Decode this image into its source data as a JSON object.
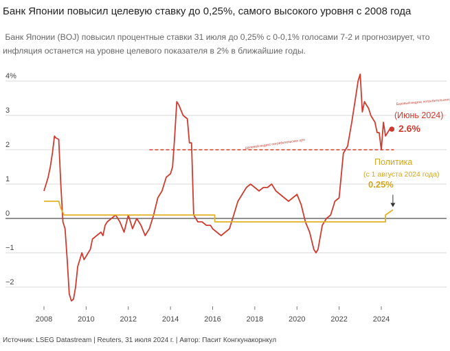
{
  "chart_data": {
    "type": "line",
    "title": "Банк Японии повысил целевую ставку до 0,25%, самого высокого уровня с 2008 года",
    "subtitle_line1": " Банк Японии (BOJ) повысил процентные ставки 31 июля до 0,25% с 0-0,1% голосами 7-2 и прогнозирует, что",
    "subtitle_line2": "инфляция останется на уровне целевого показателя в 2% в ближайшие годы.",
    "source": "Источник: LSEG Datastream | Reuters, 31 июля 2024 г. | Автор: Пасит Конгкунакорнкул",
    "xlim": [
      2007.5,
      2025.2
    ],
    "ylim": [
      -2.6,
      4.4
    ],
    "x_ticks": [
      2008,
      2010,
      2012,
      2014,
      2016,
      2018,
      2020,
      2022,
      2024
    ],
    "x_tick_labels": [
      "2008",
      "2010",
      "2012",
      "2014",
      "2016",
      "2018",
      "2020",
      "2022",
      "2024"
    ],
    "y_ticks": [
      4,
      3,
      2,
      1,
      0,
      -1,
      -2
    ],
    "y_tick_labels": [
      "4%",
      "3",
      "2",
      "1",
      "0",
      "−1",
      "−2"
    ],
    "target_level": 2,
    "target_line_start": 2013,
    "target_label": "Целевой индекс потребительских цен",
    "series": [
      {
        "name": "Базовый индекс потребительских цен",
        "color": "#d03a2e",
        "annotation": "(Июнь 2024)",
        "value_label": "2.6%",
        "last_value": 2.6,
        "x": [
          2008.0,
          2008.1,
          2008.2,
          2008.3,
          2008.4,
          2008.5,
          2008.55,
          2008.7,
          2008.8,
          2008.9,
          2009.0,
          2009.1,
          2009.2,
          2009.3,
          2009.4,
          2009.5,
          2009.6,
          2009.7,
          2009.8,
          2009.9,
          2010.0,
          2010.1,
          2010.2,
          2010.3,
          2010.5,
          2010.7,
          2010.8,
          2010.9,
          2011.0,
          2011.2,
          2011.4,
          2011.6,
          2011.8,
          2012.0,
          2012.2,
          2012.4,
          2012.6,
          2012.8,
          2013.0,
          2013.2,
          2013.4,
          2013.6,
          2013.8,
          2014.0,
          2014.1,
          2014.2,
          2014.3,
          2014.4,
          2014.6,
          2014.8,
          2014.9,
          2015.0,
          2015.1,
          2015.2,
          2015.3,
          2015.5,
          2015.7,
          2015.9,
          2016.0,
          2016.2,
          2016.4,
          2016.6,
          2016.8,
          2017.0,
          2017.2,
          2017.4,
          2017.6,
          2017.8,
          2018.0,
          2018.2,
          2018.4,
          2018.6,
          2018.8,
          2019.0,
          2019.2,
          2019.4,
          2019.6,
          2019.8,
          2020.0,
          2020.2,
          2020.4,
          2020.6,
          2020.8,
          2020.9,
          2021.0,
          2021.2,
          2021.4,
          2021.6,
          2021.8,
          2022.0,
          2022.2,
          2022.4,
          2022.6,
          2022.8,
          2022.9,
          2023.0,
          2023.1,
          2023.2,
          2023.3,
          2023.4,
          2023.5,
          2023.6,
          2023.7,
          2023.8,
          2023.9,
          2024.0,
          2024.1,
          2024.2,
          2024.3,
          2024.4
        ],
        "y": [
          0.8,
          1.0,
          1.2,
          1.5,
          1.9,
          2.4,
          2.35,
          2.3,
          1.0,
          -0.1,
          -0.3,
          -1.2,
          -2.2,
          -2.4,
          -2.35,
          -2.0,
          -1.4,
          -1.2,
          -1.0,
          -1.2,
          -1.1,
          -1.0,
          -0.9,
          -0.6,
          -0.5,
          -0.4,
          -0.5,
          -0.2,
          -0.1,
          0.0,
          0.1,
          -0.1,
          -0.4,
          0.1,
          -0.3,
          0.0,
          -0.2,
          -0.5,
          -0.3,
          0.1,
          0.6,
          0.8,
          1.2,
          1.3,
          1.5,
          2.4,
          3.4,
          3.3,
          3.0,
          2.9,
          2.2,
          2.2,
          0.1,
          0.0,
          -0.1,
          -0.1,
          -0.2,
          -0.2,
          -0.3,
          -0.4,
          -0.5,
          -0.4,
          -0.3,
          0.1,
          0.5,
          0.7,
          0.9,
          1.0,
          0.9,
          0.8,
          0.9,
          0.9,
          1.0,
          0.8,
          0.7,
          0.6,
          0.5,
          0.6,
          0.7,
          0.4,
          -0.1,
          -0.4,
          -0.9,
          -1.0,
          -0.9,
          -0.2,
          0.0,
          0.1,
          0.5,
          0.6,
          1.9,
          2.1,
          2.8,
          3.6,
          4.0,
          4.2,
          3.1,
          3.4,
          3.3,
          3.2,
          3.0,
          2.9,
          2.8,
          2.5,
          2.5,
          2.0,
          2.8,
          2.4,
          2.5,
          2.6
        ]
      },
      {
        "name": "Политика",
        "color": "#e2b122",
        "annotation": "(с 1 августа 2024 года)",
        "value_label": "0.25%",
        "last_value": 0.25,
        "x": [
          2008.0,
          2008.7,
          2008.8,
          2008.95,
          2009.0,
          2016.1,
          2016.1,
          2024.2,
          2024.2,
          2024.55
        ],
        "y": [
          0.5,
          0.5,
          0.3,
          0.1,
          0.1,
          0.1,
          -0.1,
          -0.1,
          0.1,
          0.25
        ]
      }
    ]
  }
}
